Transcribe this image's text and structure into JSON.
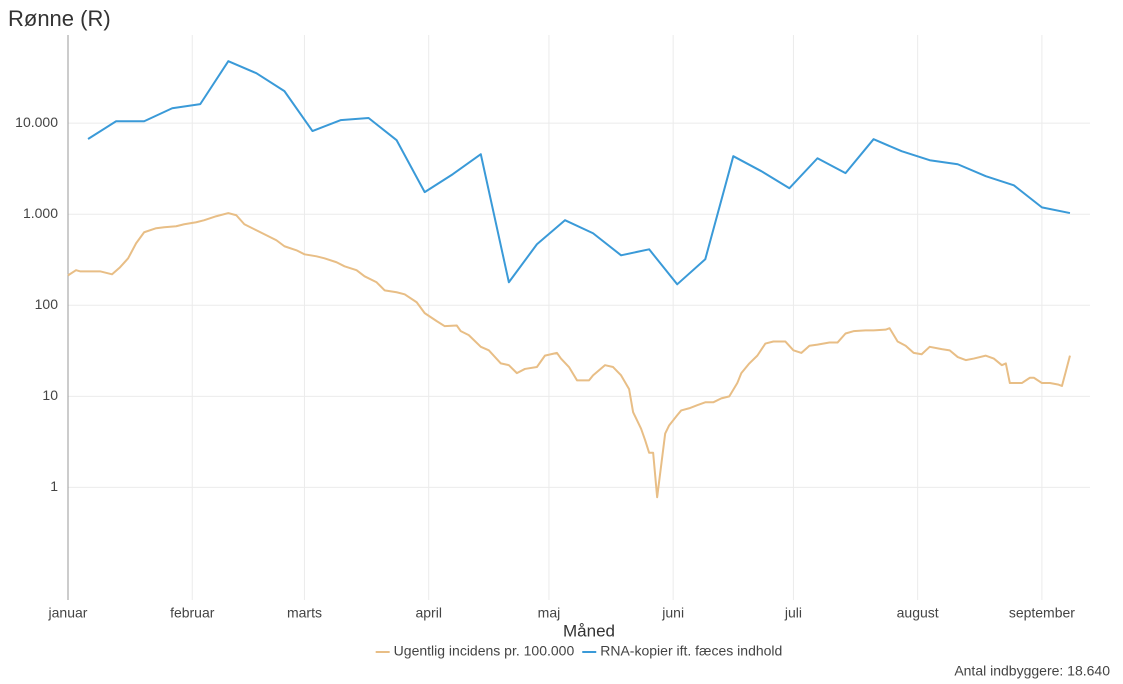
{
  "chart_data": {
    "type": "line",
    "title": "Rønne (R)",
    "x_label": "Måned",
    "caption": "Antal indbyggere: 18.640",
    "log_y": true,
    "grid": true,
    "legend": "bottom",
    "xlim": [
      0,
      255
    ],
    "xticks": [
      {
        "value": 0,
        "label": "januar"
      },
      {
        "value": 31,
        "label": "februar"
      },
      {
        "value": 59,
        "label": "marts"
      },
      {
        "value": 90,
        "label": "april"
      },
      {
        "value": 120,
        "label": "maj"
      },
      {
        "value": 151,
        "label": "juni"
      },
      {
        "value": 181,
        "label": "juli"
      },
      {
        "value": 212,
        "label": "august"
      },
      {
        "value": 243,
        "label": "september"
      }
    ],
    "ylim": [
      0.058,
      93000
    ],
    "yticks": [
      1,
      10,
      100,
      {
        "value": 1000,
        "label": "1.000"
      },
      {
        "value": 10000,
        "label": "10.000"
      }
    ],
    "series": [
      {
        "name": "Ugentlig incidens pr. 100.000",
        "color": "#e8be86",
        "x": [
          0,
          2,
          3,
          5,
          8,
          11,
          13,
          15,
          17,
          19,
          22,
          24,
          27,
          29,
          32,
          34,
          37,
          40,
          42,
          44,
          47,
          49,
          52,
          54,
          57,
          59,
          62,
          64,
          67,
          69,
          72,
          74,
          77,
          79,
          82,
          84,
          87,
          89,
          92,
          94,
          97,
          98,
          100,
          103,
          105,
          108,
          110,
          112,
          114,
          117,
          119,
          122,
          123,
          125,
          127,
          130,
          131,
          134,
          136,
          138,
          140,
          141,
          143,
          144,
          145,
          146,
          147,
          149,
          150,
          152,
          153,
          155,
          157,
          159,
          161,
          163,
          165,
          167,
          168,
          170,
          172,
          174,
          176,
          179,
          181,
          183,
          185,
          187,
          190,
          192,
          194,
          196,
          199,
          201,
          204,
          205,
          207,
          209,
          211,
          213,
          215,
          218,
          220,
          222,
          224,
          226,
          229,
          231,
          233,
          234,
          235,
          238,
          240,
          241,
          243,
          245,
          247,
          248,
          249,
          250
        ],
        "values": [
          213,
          243,
          236,
          236,
          236,
          219,
          262,
          328,
          480,
          634,
          702,
          720,
          738,
          776,
          817,
          860,
          951,
          1030,
          975,
          776,
          667,
          603,
          518,
          445,
          402,
          363,
          345,
          328,
          297,
          268,
          243,
          208,
          179,
          146,
          139,
          132,
          108,
          82,
          67,
          59,
          60,
          52,
          47,
          35,
          32,
          23,
          22,
          18,
          20,
          21,
          28,
          30,
          26,
          21,
          15,
          15,
          17,
          22,
          21,
          17,
          12,
          6.7,
          4.4,
          3.3,
          2.4,
          2.4,
          0.78,
          3.9,
          4.8,
          6.2,
          7.0,
          7.4,
          8.0,
          8.6,
          8.6,
          9.5,
          10,
          14,
          18,
          23,
          28,
          38,
          40,
          40,
          32,
          30,
          36,
          37,
          39,
          39,
          49,
          52,
          53,
          53,
          54,
          56,
          40,
          36,
          30,
          29,
          35,
          33,
          32,
          27,
          25,
          26,
          28,
          26,
          22,
          23,
          14,
          14,
          16,
          16,
          14,
          14,
          13.5,
          13,
          19,
          28
        ]
      },
      {
        "name": "RNA-kopier ift. fæces indhold",
        "color": "#3a9ad8",
        "x": [
          5,
          12,
          19,
          26,
          33,
          40,
          47,
          54,
          61,
          68,
          75,
          82,
          89,
          96,
          103,
          110,
          117,
          124,
          131,
          138,
          145,
          152,
          159,
          166,
          173,
          180,
          187,
          194,
          201,
          208,
          215,
          222,
          229,
          236,
          243,
          250
        ],
        "values": [
          6700,
          10500,
          10500,
          14600,
          16200,
          48000,
          35400,
          22500,
          8200,
          10800,
          11400,
          6500,
          1750,
          2750,
          4560,
          179,
          468,
          860,
          618,
          354,
          412,
          170,
          320,
          4340,
          2970,
          1930,
          4120,
          2830,
          6670,
          4920,
          3920,
          3540,
          2620,
          2080,
          1190,
          1030
        ]
      }
    ]
  }
}
